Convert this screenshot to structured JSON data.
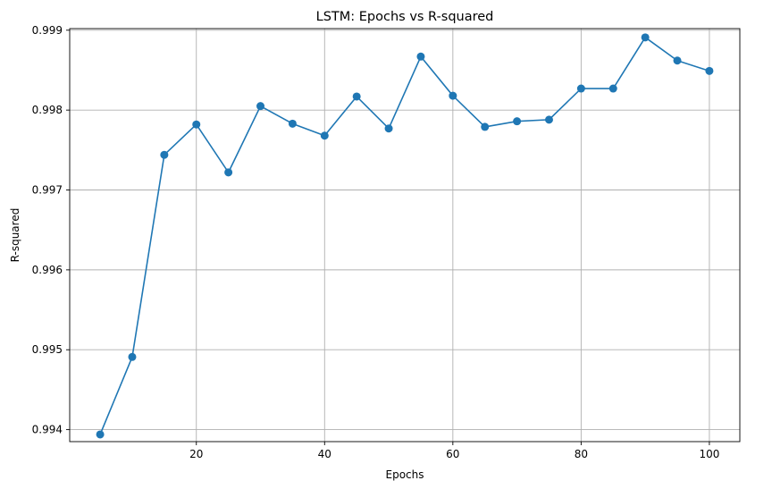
{
  "chart_data": {
    "type": "line",
    "title": "LSTM: Epochs vs R-squared",
    "xlabel": "Epochs",
    "ylabel": "R-squared",
    "x": [
      5,
      10,
      15,
      20,
      25,
      30,
      35,
      40,
      45,
      50,
      55,
      60,
      65,
      70,
      75,
      80,
      85,
      90,
      95,
      100
    ],
    "series": [
      {
        "values": [
          0.99394,
          0.99491,
          0.99744,
          0.99782,
          0.99722,
          0.99805,
          0.99783,
          0.99768,
          0.99817,
          0.99777,
          0.99867,
          0.99818,
          0.99779,
          0.99786,
          0.99788,
          0.99827,
          0.99827,
          0.99891,
          0.99862,
          0.99849
        ],
        "color": "#1f77b4",
        "marker": "circle"
      }
    ],
    "xlim": [
      0.25,
      104.75
    ],
    "ylim": [
      0.99385,
      0.99902
    ],
    "xticks": [
      20,
      40,
      60,
      80,
      100
    ],
    "xtick_labels": [
      "20",
      "40",
      "60",
      "80",
      "100"
    ],
    "yticks": [
      0.994,
      0.995,
      0.996,
      0.997,
      0.998,
      0.999
    ],
    "ytick_labels": [
      "0.994",
      "0.995",
      "0.996",
      "0.997",
      "0.998",
      "0.999"
    ],
    "grid": true
  }
}
